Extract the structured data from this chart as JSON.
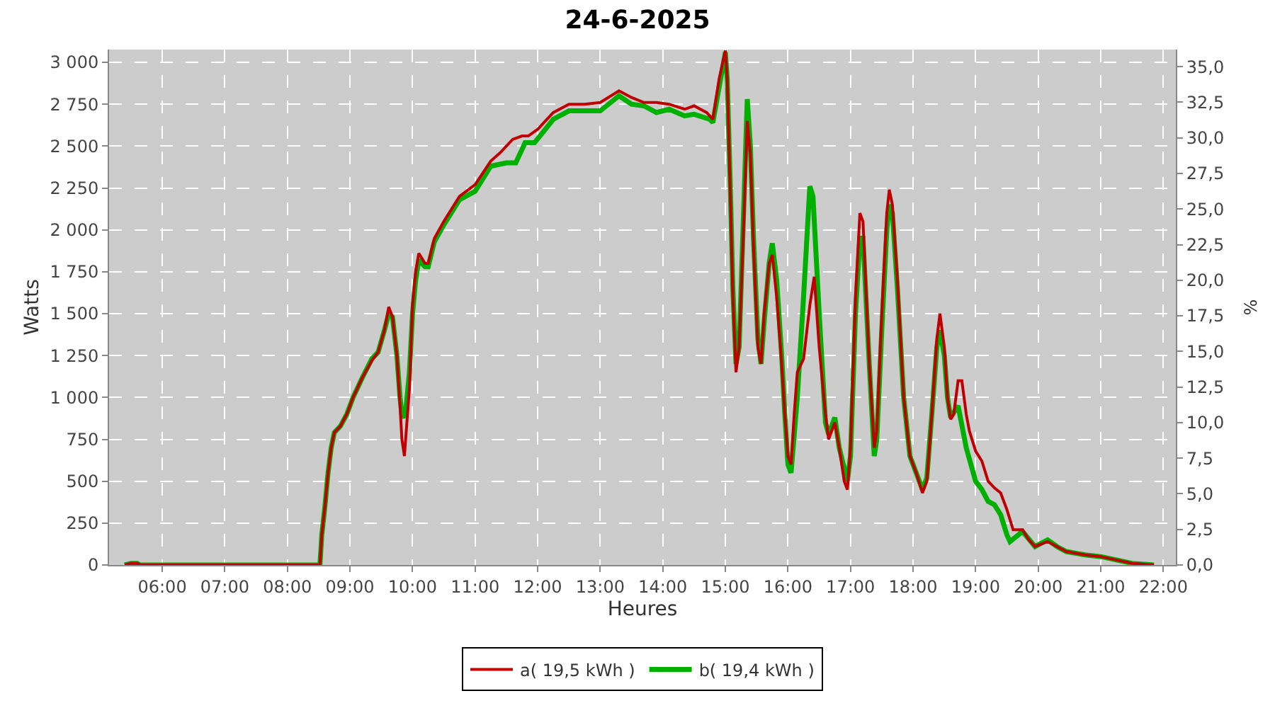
{
  "chart_data": {
    "type": "line",
    "title": "24-6-2025",
    "xlabel": "Heures",
    "ylabel": "Watts",
    "y2label": "%",
    "xlim": [
      5.15,
      22.2
    ],
    "xticks": [
      {
        "value": 6,
        "label": "06:00"
      },
      {
        "value": 7,
        "label": "07:00"
      },
      {
        "value": 8,
        "label": "08:00"
      },
      {
        "value": 9,
        "label": "09:00"
      },
      {
        "value": 10,
        "label": "10:00"
      },
      {
        "value": 11,
        "label": "11:00"
      },
      {
        "value": 12,
        "label": "12:00"
      },
      {
        "value": 13,
        "label": "13:00"
      },
      {
        "value": 14,
        "label": "14:00"
      },
      {
        "value": 15,
        "label": "15:00"
      },
      {
        "value": 16,
        "label": "16:00"
      },
      {
        "value": 17,
        "label": "17:00"
      },
      {
        "value": 18,
        "label": "18:00"
      },
      {
        "value": 19,
        "label": "19:00"
      },
      {
        "value": 20,
        "label": "20:00"
      },
      {
        "value": 21,
        "label": "21:00"
      },
      {
        "value": 22,
        "label": "22:00"
      }
    ],
    "ylim": [
      0,
      3076
    ],
    "yticks": [
      0,
      250,
      500,
      750,
      {
        "value": 1000,
        "label": "1 000"
      },
      {
        "value": 1250,
        "label": "1 250"
      },
      {
        "value": 1500,
        "label": "1 500"
      },
      {
        "value": 1750,
        "label": "1 750"
      },
      {
        "value": 2000,
        "label": "2 000"
      },
      {
        "value": 2250,
        "label": "2 250"
      },
      {
        "value": 2500,
        "label": "2 500"
      },
      {
        "value": 2750,
        "label": "2 750"
      },
      {
        "value": 3000,
        "label": "3 000"
      }
    ],
    "y2lim": [
      0,
      36.2
    ],
    "y2ticks": [
      {
        "value": 0,
        "label": "0,0"
      },
      {
        "value": 2.5,
        "label": "2,5"
      },
      {
        "value": 5,
        "label": "5,0"
      },
      {
        "value": 7.5,
        "label": "7,5"
      },
      {
        "value": 10,
        "label": "10,0"
      },
      {
        "value": 12.5,
        "label": "12,5"
      },
      {
        "value": 15,
        "label": "15,0"
      },
      {
        "value": 17.5,
        "label": "17,5"
      },
      {
        "value": 20,
        "label": "20,0"
      },
      {
        "value": 22.5,
        "label": "22,5"
      },
      {
        "value": 25,
        "label": "25,0"
      },
      {
        "value": 27.5,
        "label": "27,5"
      },
      {
        "value": 30,
        "label": "30,0"
      },
      {
        "value": 32.5,
        "label": "32,5"
      },
      {
        "value": 35,
        "label": "35,0"
      }
    ],
    "grid": true,
    "legend": "bottom",
    "marker": "none",
    "line_style": "solid",
    "series": [
      {
        "name": "a( 19,5 kWh )",
        "color": "#c00000",
        "x": [
          5.4,
          5.5,
          5.6,
          5.65,
          8.52,
          8.55,
          8.6,
          8.65,
          8.7,
          8.75,
          8.85,
          8.95,
          9.05,
          9.2,
          9.35,
          9.45,
          9.55,
          9.62,
          9.68,
          9.75,
          9.8,
          9.83,
          9.87,
          9.9,
          9.95,
          10.0,
          10.05,
          10.1,
          10.2,
          10.25,
          10.35,
          10.5,
          10.75,
          11.0,
          11.25,
          11.4,
          11.6,
          11.75,
          11.85,
          12.0,
          12.25,
          12.5,
          12.75,
          13.0,
          13.3,
          13.5,
          13.7,
          13.9,
          14.1,
          14.35,
          14.5,
          14.7,
          14.8,
          14.9,
          15.0,
          15.03,
          15.08,
          15.12,
          15.17,
          15.22,
          15.3,
          15.35,
          15.4,
          15.45,
          15.52,
          15.57,
          15.62,
          15.7,
          15.75,
          15.82,
          15.9,
          15.95,
          16.0,
          16.05,
          16.1,
          16.15,
          16.25,
          16.35,
          16.42,
          16.5,
          16.6,
          16.65,
          16.75,
          16.82,
          16.9,
          16.95,
          17.0,
          17.08,
          17.15,
          17.2,
          17.3,
          17.38,
          17.42,
          17.5,
          17.58,
          17.62,
          17.67,
          17.75,
          17.85,
          17.95,
          18.05,
          18.15,
          18.22,
          18.3,
          18.38,
          18.43,
          18.5,
          18.55,
          18.6,
          18.65,
          18.72,
          18.78,
          18.85,
          18.9,
          19.0,
          19.1,
          19.2,
          19.3,
          19.4,
          19.5,
          19.6,
          19.75,
          19.85,
          19.95,
          20.15,
          20.3,
          20.45,
          20.75,
          21.0,
          21.25,
          21.5,
          21.85
        ],
        "values": [
          0,
          10,
          10,
          0,
          0,
          180,
          350,
          550,
          700,
          790,
          830,
          900,
          1000,
          1120,
          1220,
          1270,
          1400,
          1540,
          1480,
          1250,
          950,
          750,
          650,
          800,
          1050,
          1550,
          1750,
          1860,
          1800,
          1800,
          1950,
          2050,
          2200,
          2270,
          2410,
          2460,
          2540,
          2560,
          2560,
          2600,
          2700,
          2750,
          2750,
          2760,
          2830,
          2790,
          2760,
          2760,
          2750,
          2720,
          2740,
          2700,
          2660,
          2900,
          3070,
          2900,
          2200,
          1600,
          1150,
          1300,
          2100,
          2650,
          2450,
          1900,
          1300,
          1200,
          1500,
          1800,
          1850,
          1600,
          1200,
          900,
          650,
          600,
          900,
          1150,
          1230,
          1550,
          1720,
          1300,
          900,
          750,
          850,
          700,
          500,
          450,
          700,
          1600,
          2100,
          2050,
          1200,
          700,
          800,
          1500,
          2100,
          2240,
          2150,
          1700,
          1000,
          650,
          550,
          430,
          500,
          900,
          1350,
          1500,
          1300,
          1000,
          870,
          900,
          1100,
          1100,
          900,
          800,
          680,
          620,
          500,
          460,
          430,
          330,
          210,
          210,
          150,
          110,
          140,
          110,
          80,
          60,
          50,
          30,
          10,
          0
        ]
      },
      {
        "name": "b( 19,4 kWh )",
        "color": "#00b000",
        "x": [
          5.4,
          5.5,
          5.6,
          5.65,
          8.52,
          8.55,
          8.6,
          8.65,
          8.7,
          8.75,
          8.85,
          8.95,
          9.05,
          9.2,
          9.35,
          9.45,
          9.55,
          9.62,
          9.68,
          9.75,
          9.8,
          9.83,
          9.87,
          9.9,
          9.95,
          10.0,
          10.05,
          10.1,
          10.2,
          10.25,
          10.35,
          10.5,
          10.75,
          11.0,
          11.25,
          11.5,
          11.65,
          11.8,
          11.95,
          12.25,
          12.5,
          12.75,
          13.0,
          13.3,
          13.5,
          13.7,
          13.9,
          14.1,
          14.35,
          14.5,
          14.75,
          14.8,
          14.9,
          15.0,
          15.03,
          15.08,
          15.12,
          15.17,
          15.22,
          15.3,
          15.35,
          15.4,
          15.45,
          15.52,
          15.57,
          15.62,
          15.7,
          15.75,
          15.82,
          15.9,
          15.95,
          16.0,
          16.05,
          16.15,
          16.25,
          16.35,
          16.4,
          16.5,
          16.6,
          16.65,
          16.75,
          16.82,
          16.95,
          17.0,
          17.08,
          17.15,
          17.2,
          17.3,
          17.38,
          17.42,
          17.5,
          17.58,
          17.62,
          17.67,
          17.75,
          17.85,
          17.95,
          18.05,
          18.15,
          18.22,
          18.3,
          18.38,
          18.43,
          18.5,
          18.55,
          18.6,
          18.72,
          18.85,
          19.0,
          19.1,
          19.2,
          19.3,
          19.4,
          19.5,
          19.55,
          19.75,
          19.95,
          20.15,
          20.3,
          20.45,
          20.75,
          21.0,
          21.25,
          21.5,
          21.85
        ],
        "values": [
          0,
          10,
          10,
          0,
          0,
          180,
          350,
          550,
          700,
          790,
          830,
          900,
          1000,
          1120,
          1230,
          1270,
          1400,
          1500,
          1480,
          1250,
          1000,
          900,
          880,
          950,
          1150,
          1500,
          1700,
          1820,
          1780,
          1780,
          1930,
          2030,
          2180,
          2230,
          2380,
          2400,
          2400,
          2520,
          2520,
          2660,
          2710,
          2710,
          2710,
          2800,
          2750,
          2740,
          2700,
          2720,
          2680,
          2690,
          2660,
          2640,
          2850,
          3060,
          2900,
          2250,
          1650,
          1200,
          1300,
          2200,
          2780,
          2500,
          1950,
          1350,
          1200,
          1450,
          1800,
          1920,
          1700,
          1250,
          900,
          600,
          550,
          1000,
          1600,
          2260,
          2200,
          1500,
          850,
          780,
          880,
          700,
          500,
          650,
          1500,
          1950,
          1950,
          1200,
          650,
          750,
          1400,
          2000,
          2150,
          2100,
          1650,
          1000,
          650,
          550,
          450,
          520,
          900,
          1300,
          1400,
          1250,
          1000,
          880,
          950,
          700,
          500,
          450,
          380,
          360,
          300,
          180,
          140,
          200,
          110,
          150,
          110,
          80,
          60,
          50,
          30,
          10,
          0
        ]
      }
    ]
  }
}
